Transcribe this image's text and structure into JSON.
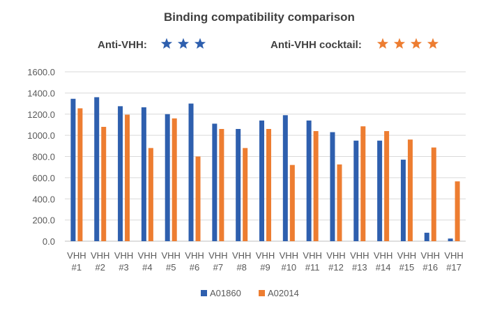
{
  "chart_data": {
    "type": "bar",
    "title": "Binding compatibility comparison",
    "categories": [
      [
        "VHH",
        "#1"
      ],
      [
        "VHH",
        "#2"
      ],
      [
        "VHH",
        "#3"
      ],
      [
        "VHH",
        "#4"
      ],
      [
        "VHH",
        "#5"
      ],
      [
        "VHH",
        "#6"
      ],
      [
        "VHH",
        "#7"
      ],
      [
        "VHH",
        "#8"
      ],
      [
        "VHH",
        "#9"
      ],
      [
        "VHH",
        "#10"
      ],
      [
        "VHH",
        "#11"
      ],
      [
        "VHH",
        "#12"
      ],
      [
        "VHH",
        "#13"
      ],
      [
        "VHH",
        "#14"
      ],
      [
        "VHH",
        "#15"
      ],
      [
        "VHH",
        "#16"
      ],
      [
        "VHH",
        "#17"
      ]
    ],
    "series": [
      {
        "name": "A01860",
        "color": "#2e5fae",
        "values": [
          1345,
          1360,
          1275,
          1265,
          1200,
          1300,
          1110,
          1060,
          1140,
          1190,
          1140,
          1030,
          950,
          950,
          770,
          80,
          25
        ]
      },
      {
        "name": "A02014",
        "color": "#ed7d31",
        "values": [
          1255,
          1080,
          1195,
          880,
          1160,
          800,
          1060,
          880,
          1060,
          720,
          1040,
          725,
          1085,
          1040,
          960,
          885,
          565
        ]
      }
    ],
    "ylim": [
      0,
      1600
    ],
    "yticks": [
      0,
      200,
      400,
      600,
      800,
      1000,
      1200,
      1400,
      1600
    ],
    "ytick_format": "0.0",
    "grid": true,
    "legend_position": "bottom",
    "ratings": [
      {
        "label": "Anti-VHH:",
        "stars": 3,
        "color": "#2e5fae"
      },
      {
        "label": "Anti-VHH cocktail:",
        "stars": 4,
        "color": "#ed7d31"
      }
    ]
  }
}
